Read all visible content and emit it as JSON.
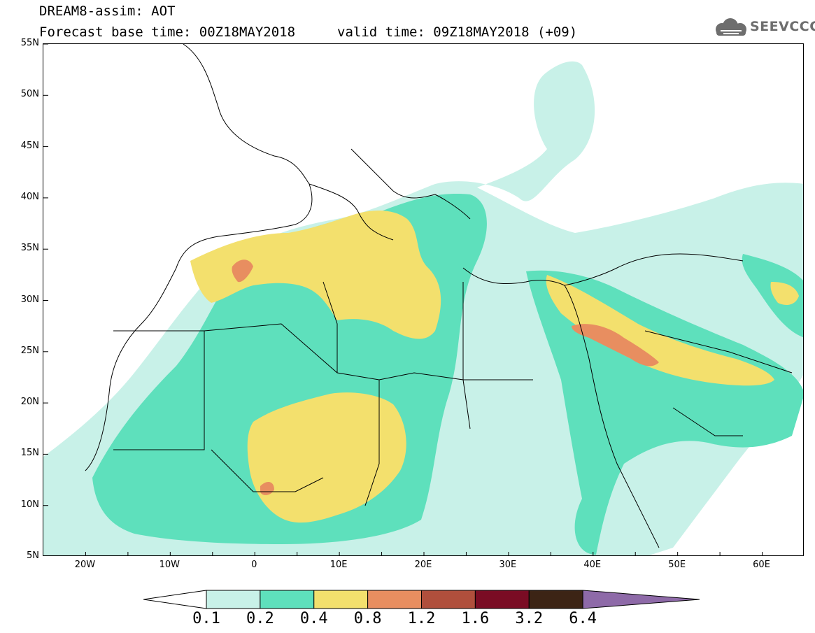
{
  "header": {
    "model_line": "DREAM8-assim: AOT",
    "base_time_line": "Forecast base time: 00Z18MAY2018",
    "valid_time_line": "valid time: 09Z18MAY2018 (+09)",
    "logo_text": "SEEVCCC",
    "logo_icon": "cloud-icon"
  },
  "map": {
    "lat_range": [
      5,
      55
    ],
    "lon_range": [
      -25,
      65
    ],
    "lat_labels": [
      "55N",
      "50N",
      "45N",
      "40N",
      "35N",
      "30N",
      "25N",
      "20N",
      "15N",
      "10N",
      "5N"
    ],
    "lat_values": [
      55,
      50,
      45,
      40,
      35,
      30,
      25,
      20,
      15,
      10,
      5
    ],
    "lon_labels": [
      "20W",
      "10W",
      "0",
      "10E",
      "20E",
      "30E",
      "40E",
      "50E",
      "60E"
    ],
    "lon_values": [
      -20,
      -10,
      0,
      10,
      20,
      30,
      40,
      50,
      60
    ],
    "background_color": "#ffffff",
    "border_color": "#000000"
  },
  "colorbar": {
    "levels": [
      "0.1",
      "0.2",
      "0.4",
      "0.8",
      "1.2",
      "1.6",
      "3.2",
      "6.4"
    ],
    "colors": [
      "#c8f1e8",
      "#5ee0bc",
      "#f3e06d",
      "#e88e60",
      "#b04f3c",
      "#7a0c24",
      "#3c2415",
      "#8e6aa8"
    ],
    "extend_min_color": "#ffffff",
    "extend_max_color": "#8e6aa8"
  }
}
